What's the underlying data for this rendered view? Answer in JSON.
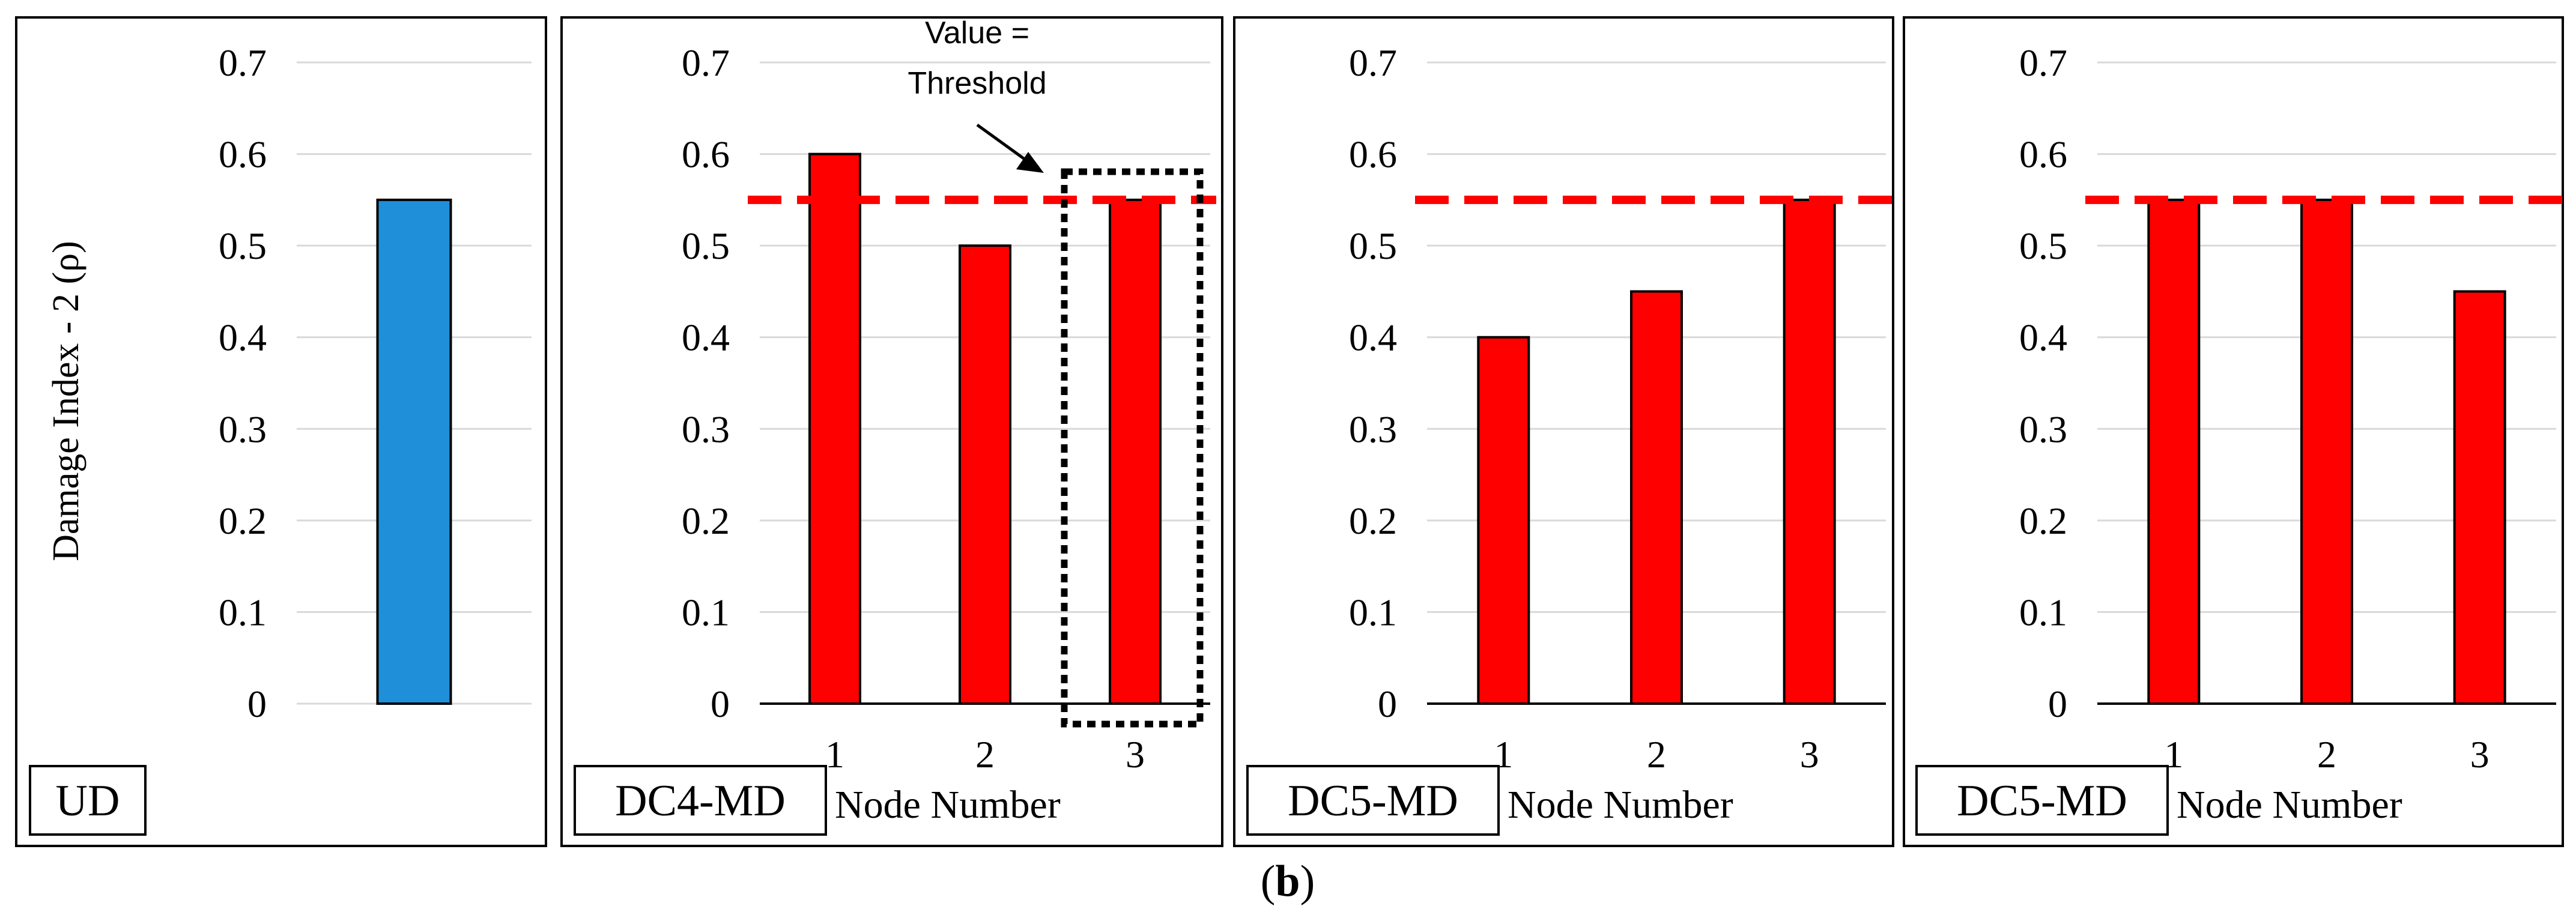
{
  "figure_caption": {
    "open": "(",
    "letter": "b",
    "close": ")"
  },
  "colors": {
    "ud_bar": "#1f8fd9",
    "dc_bar": "#ff0000",
    "threshold": "#ff0000",
    "grid": "#d9d9d9"
  },
  "chart_data": [
    {
      "type": "bar",
      "tag": "UD",
      "categories": [
        ""
      ],
      "values": [
        0.55
      ],
      "ylabel": "Damage Index - 2 (ρ)",
      "xlabel": "",
      "ylim": [
        0,
        0.7
      ],
      "yticks": [
        "0",
        "0.1",
        "0.2",
        "0.3",
        "0.4",
        "0.5",
        "0.6",
        "0.7"
      ],
      "threshold": null,
      "color_key": "ud_bar"
    },
    {
      "type": "bar",
      "tag": "DC4-MD",
      "categories": [
        "1",
        "2",
        "3"
      ],
      "values": [
        0.6,
        0.5,
        0.55
      ],
      "xlabel": "Node Number",
      "ylim": [
        0,
        0.7
      ],
      "yticks": [
        "0",
        "0.1",
        "0.2",
        "0.3",
        "0.4",
        "0.5",
        "0.6",
        "0.7"
      ],
      "threshold": 0.55,
      "highlight_category_index": 2,
      "annotation": {
        "line1": "Value =",
        "line2": "Threshold"
      },
      "color_key": "dc_bar"
    },
    {
      "type": "bar",
      "tag": "DC5-MD",
      "categories": [
        "1",
        "2",
        "3"
      ],
      "values": [
        0.4,
        0.45,
        0.55
      ],
      "xlabel": "Node Number",
      "ylim": [
        0,
        0.7
      ],
      "yticks": [
        "0",
        "0.1",
        "0.2",
        "0.3",
        "0.4",
        "0.5",
        "0.6",
        "0.7"
      ],
      "threshold": 0.55,
      "color_key": "dc_bar"
    },
    {
      "type": "bar",
      "tag": "DC5-MD",
      "categories": [
        "1",
        "2",
        "3"
      ],
      "values": [
        0.55,
        0.55,
        0.45
      ],
      "xlabel": "Node Number",
      "ylim": [
        0,
        0.7
      ],
      "yticks": [
        "0",
        "0.1",
        "0.2",
        "0.3",
        "0.4",
        "0.5",
        "0.6",
        "0.7"
      ],
      "threshold": 0.55,
      "color_key": "dc_bar"
    }
  ]
}
